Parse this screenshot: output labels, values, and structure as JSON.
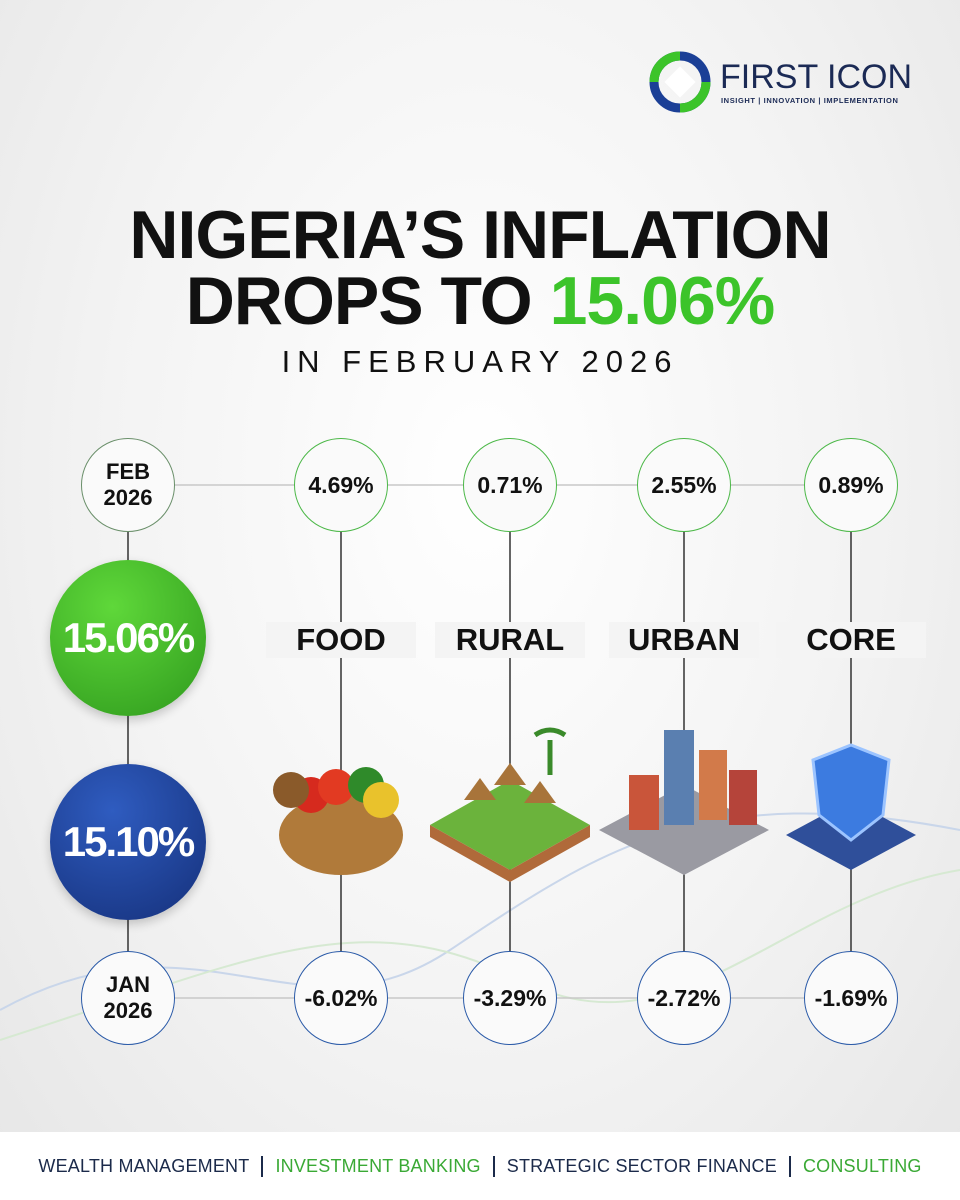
{
  "logo": {
    "name": "FIRST ICON",
    "tagline": "INSIGHT | INNOVATION | IMPLEMENTATION"
  },
  "headline": {
    "line1": "NIGERIA’S INFLATION",
    "line2": "DROPS TO",
    "highlight": "15.06%",
    "subtitle": "IN FEBRUARY 2026"
  },
  "periods": {
    "current": {
      "month": "FEB",
      "year": "2026",
      "headline_rate": "15.06%"
    },
    "previous": {
      "month": "JAN",
      "year": "2026",
      "headline_rate": "15.10%"
    }
  },
  "indicators": [
    {
      "label": "FOOD",
      "current": "4.69%",
      "previous": "-6.02%"
    },
    {
      "label": "RURAL",
      "current": "0.71%",
      "previous": "-3.29%"
    },
    {
      "label": "URBAN",
      "current": "2.55%",
      "previous": "-2.72%"
    },
    {
      "label": "CORE",
      "current": "0.89%",
      "previous": "-1.69%"
    }
  ],
  "footer": {
    "services": [
      "WEALTH MANAGEMENT",
      "INVESTMENT BANKING",
      "STRATEGIC SECTOR FINANCE",
      "CONSULTING"
    ]
  }
}
